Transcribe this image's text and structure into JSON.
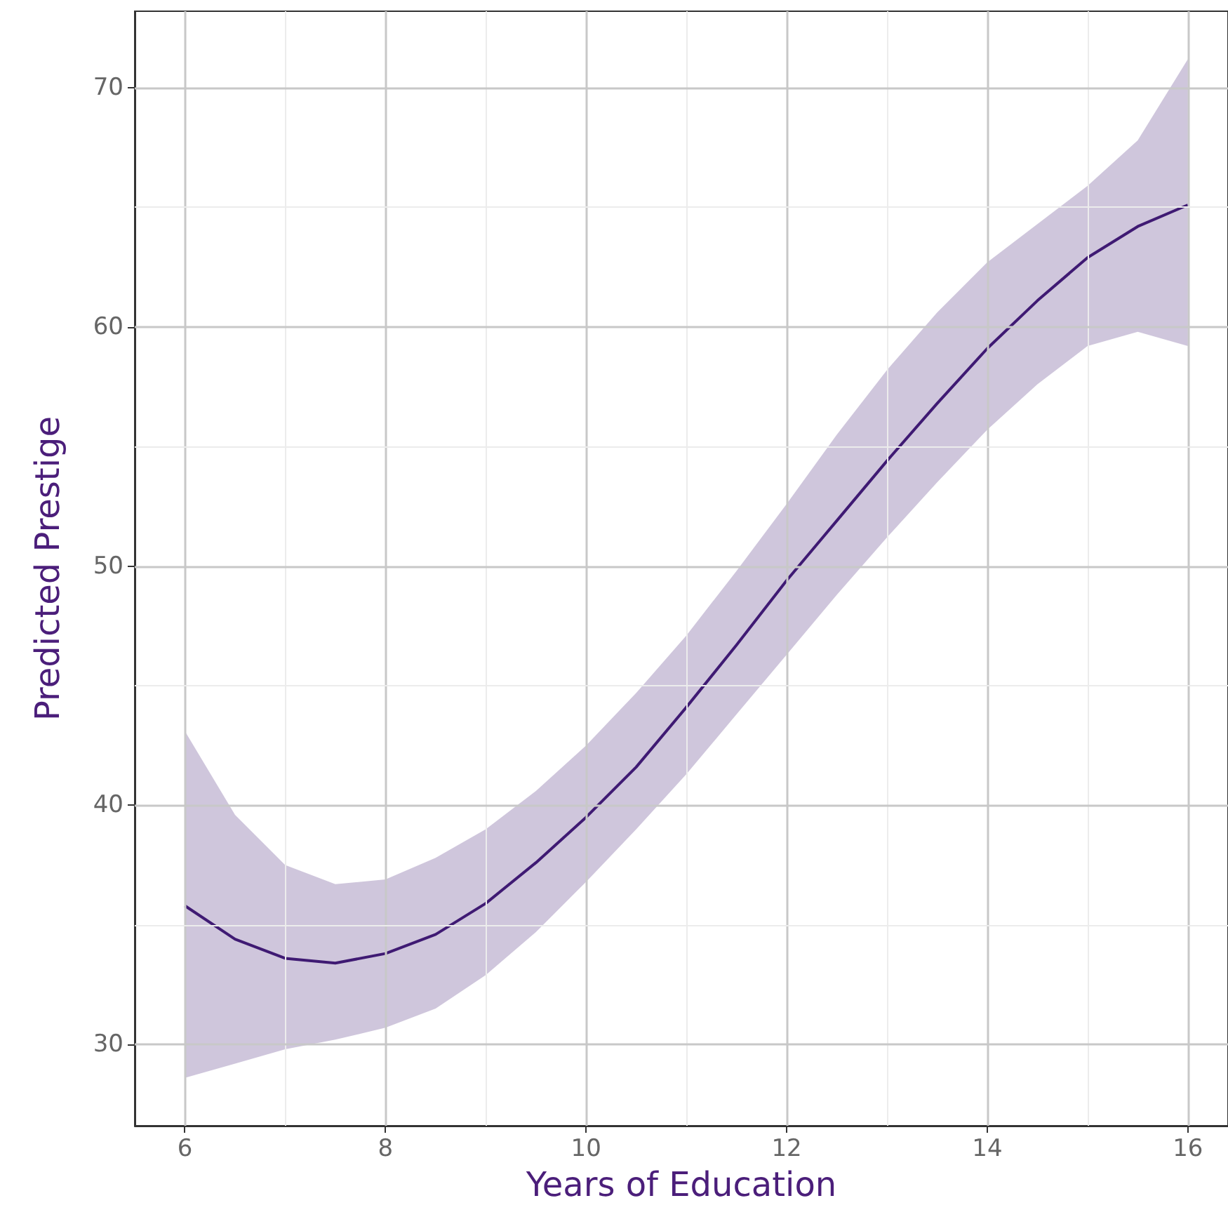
{
  "chart_data": {
    "type": "line",
    "xlabel": "Years of Education",
    "ylabel": "Predicted Prestige",
    "x": [
      6,
      6.5,
      7,
      7.5,
      8,
      8.5,
      9,
      9.5,
      10,
      10.5,
      11,
      11.5,
      12,
      12.5,
      13,
      13.5,
      14,
      14.5,
      15,
      15.5,
      16
    ],
    "series": [
      {
        "color": "#3f1a73",
        "values": [
          35.8,
          34.4,
          33.6,
          33.4,
          33.8,
          34.6,
          35.9,
          37.6,
          39.5,
          41.6,
          44.1,
          46.7,
          49.4,
          51.9,
          54.4,
          56.8,
          59.1,
          61.1,
          62.9,
          64.2,
          65.1
        ],
        "lower": [
          28.6,
          29.2,
          29.8,
          30.2,
          30.7,
          31.5,
          32.9,
          34.7,
          36.8,
          39.0,
          41.3,
          43.8,
          46.3,
          48.8,
          51.2,
          53.5,
          55.7,
          57.6,
          59.2,
          59.8,
          59.2
        ],
        "upper": [
          43.1,
          39.6,
          37.5,
          36.7,
          36.9,
          37.8,
          39.0,
          40.6,
          42.5,
          44.7,
          47.1,
          49.8,
          52.6,
          55.5,
          58.2,
          60.6,
          62.7,
          64.3,
          65.9,
          67.8,
          71.2
        ]
      }
    ],
    "xlim": [
      5.5,
      16.4
    ],
    "xticks": [
      6,
      8,
      10,
      12,
      14,
      16
    ],
    "ylim": [
      26.6,
      73.2
    ],
    "yticks": [
      30,
      40,
      50,
      60,
      70
    ],
    "grid": true,
    "marker": "none",
    "line_style": "solid"
  }
}
